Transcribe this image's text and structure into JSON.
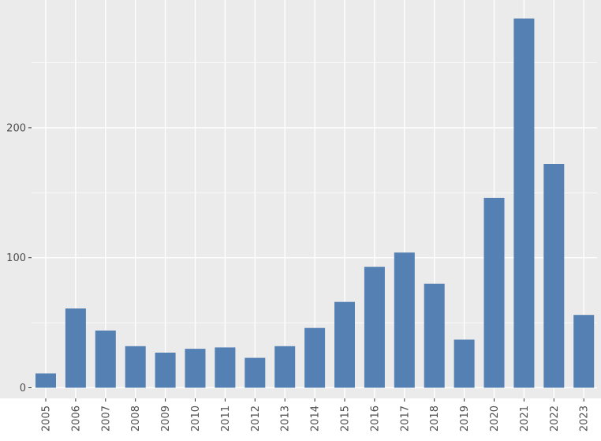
{
  "chart_data": {
    "type": "bar",
    "categories": [
      "2005",
      "2006",
      "2007",
      "2008",
      "2009",
      "2010",
      "2011",
      "2012",
      "2013",
      "2014",
      "2015",
      "2016",
      "2017",
      "2018",
      "2019",
      "2020",
      "2021",
      "2022",
      "2023"
    ],
    "values": [
      11,
      61,
      44,
      32,
      27,
      30,
      31,
      23,
      32,
      46,
      66,
      93,
      104,
      80,
      37,
      146,
      284,
      172,
      56
    ],
    "title": "",
    "xlabel": "",
    "ylabel": "",
    "ylim": [
      0,
      300
    ],
    "yticks": [
      0,
      100,
      200
    ],
    "ytick_labels": [
      "0",
      "100",
      "200"
    ],
    "grid": true,
    "legend": "none",
    "colors": {
      "bar": "#5580b3",
      "panel": "#ebebeb",
      "grid": "#ffffff",
      "tick_text": "#4d4d4d"
    }
  }
}
